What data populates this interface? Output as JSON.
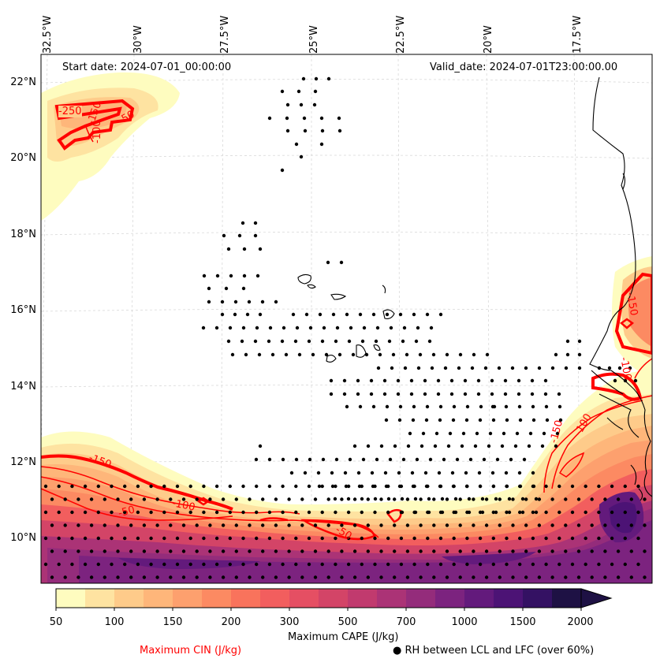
{
  "header": {
    "start_date": "Start date: 2024-07-01_00:00:00",
    "valid_date": "Valid_date: 2024-07-01T23:00:00.00"
  },
  "axes": {
    "longitude_labels": [
      "32.5°W",
      "30°W",
      "27.5°W",
      "25°W",
      "22.5°W",
      "20°W",
      "17.5°W"
    ],
    "latitude_labels": [
      "22°N",
      "20°N",
      "18°N",
      "16°N",
      "14°N",
      "12°N",
      "10°N"
    ]
  },
  "colorbar": {
    "title": "Maximum CAPE (J/kg)",
    "ticks": [
      "50",
      "100",
      "150",
      "200",
      "300",
      "500",
      "700",
      "1000",
      "1500",
      "2000"
    ],
    "colors": [
      "#fefcbf",
      "#fee3a1",
      "#fecb8a",
      "#feb67a",
      "#fda06e",
      "#fc8a62",
      "#f9735c",
      "#f25e5e",
      "#e54f63",
      "#d34467",
      "#c13a6e",
      "#ab3376",
      "#942c7b",
      "#7c237f",
      "#631a7c",
      "#4c1375",
      "#341163",
      "#1e1144"
    ]
  },
  "legend": {
    "cin_label": "Maximum CIN (J/kg)",
    "rh_label": "RH between LCL and LFC (over 60%)",
    "rh_marker": "●"
  },
  "contour_labels": [
    "-250",
    "-150",
    "-50",
    "-100",
    "-150",
    "-100",
    "-50",
    "-50",
    "-100",
    "-150",
    "-150",
    "-100"
  ],
  "colors": {
    "cin_contour": "#ff0000",
    "coastline": "#000000"
  }
}
